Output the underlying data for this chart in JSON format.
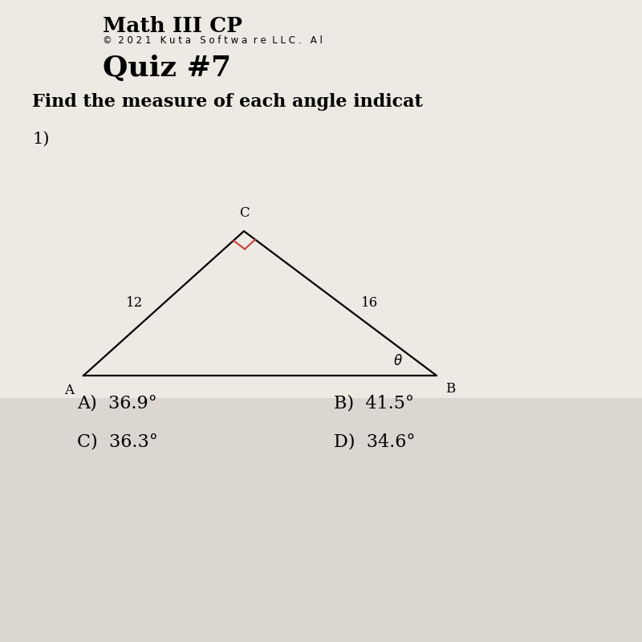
{
  "background_color": "#d8d4ce",
  "page_color": "#e8e4df",
  "title_line1": "Math III CP",
  "title_line2": "©  2 0 2 1   K u t a   S o f t w a  r e  L L C .   A l",
  "title_line3": "Quiz #7",
  "instruction": "Find the measure of each angle indicat",
  "problem_number": "1)",
  "triangle": {
    "A": [
      0.13,
      0.415
    ],
    "B": [
      0.68,
      0.415
    ],
    "C": [
      0.38,
      0.64
    ]
  },
  "label_A": "A",
  "label_B": "B",
  "label_C": "C",
  "side_AC": "12",
  "side_BC": "16",
  "angle_label": "θ",
  "right_angle_color": "#cc3333",
  "answers": [
    [
      "A)  36.9°",
      "B)  41.5°"
    ],
    [
      "C)  36.3°",
      "D)  34.6°"
    ]
  ],
  "answer_fontsize": 16,
  "instruction_fontsize": 16
}
